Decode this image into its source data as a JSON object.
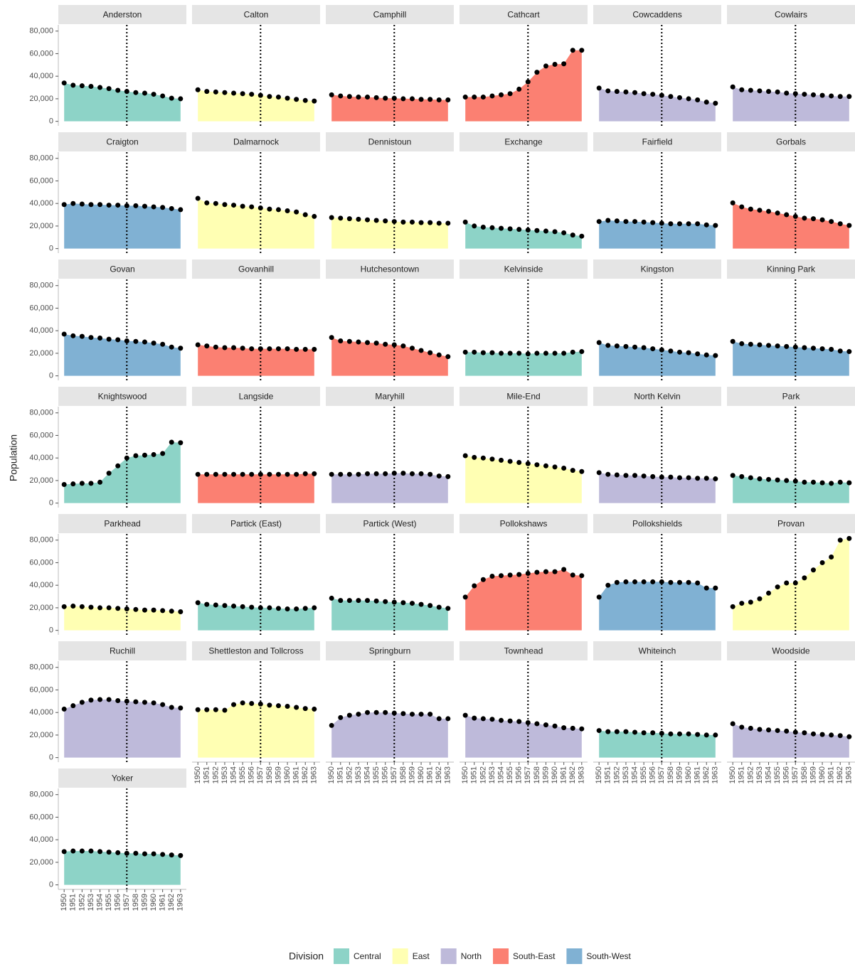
{
  "chart_data": {
    "type": "area",
    "y_label": "Population",
    "legend_title": "Division",
    "legend_position": "bottom",
    "divisions": [
      {
        "name": "Central",
        "color": "#8dd3c7"
      },
      {
        "name": "East",
        "color": "#ffffb3"
      },
      {
        "name": "North",
        "color": "#bebada"
      },
      {
        "name": "South-East",
        "color": "#fb8072"
      },
      {
        "name": "South-West",
        "color": "#80b1d3"
      }
    ],
    "x": [
      1950,
      1951,
      1952,
      1953,
      1954,
      1955,
      1956,
      1957,
      1958,
      1959,
      1960,
      1961,
      1962,
      1963
    ],
    "xlim": [
      1949.35,
      1963.65
    ],
    "xticks": [
      1950,
      1951,
      1952,
      1953,
      1954,
      1955,
      1956,
      1957,
      1958,
      1959,
      1960,
      1961,
      1962,
      1963
    ],
    "ylim": [
      -4000,
      85500
    ],
    "yticks": [
      0,
      {
        "value": 20000,
        "label": "20,000"
      },
      {
        "value": 40000,
        "label": "40,000"
      },
      {
        "value": 60000,
        "label": "60,000"
      },
      {
        "value": 80000,
        "label": "80,000"
      }
    ],
    "vline": 1957,
    "columns": 6,
    "panels": [
      {
        "title": "Anderston",
        "division": "Central",
        "values": [
          34000,
          32000,
          31500,
          31000,
          30000,
          29000,
          27500,
          26500,
          25500,
          25000,
          24000,
          22500,
          20500,
          20000
        ]
      },
      {
        "title": "Calton",
        "division": "East",
        "values": [
          28000,
          26500,
          26000,
          25500,
          25000,
          24500,
          24000,
          23000,
          22000,
          21500,
          20500,
          19500,
          18500,
          18000
        ]
      },
      {
        "title": "Camphill",
        "division": "South-East",
        "values": [
          23500,
          22500,
          22000,
          21500,
          21500,
          21000,
          20500,
          20500,
          20000,
          20000,
          19500,
          19500,
          19000,
          19000
        ]
      },
      {
        "title": "Cathcart",
        "division": "South-East",
        "values": [
          21500,
          21500,
          21500,
          22500,
          23500,
          24500,
          28500,
          35000,
          43500,
          49000,
          50500,
          51000,
          63000,
          63000
        ]
      },
      {
        "title": "Cowcaddens",
        "division": "North",
        "values": [
          29500,
          27000,
          26500,
          26000,
          25500,
          24500,
          24000,
          23000,
          22000,
          21000,
          20000,
          19000,
          17000,
          16000
        ]
      },
      {
        "title": "Cowlairs",
        "division": "North",
        "values": [
          30500,
          28000,
          27500,
          27000,
          26500,
          26000,
          25000,
          24500,
          24000,
          23500,
          23000,
          22500,
          22000,
          22000
        ]
      },
      {
        "title": "Craigton",
        "division": "South-West",
        "values": [
          39000,
          40000,
          39500,
          39000,
          39000,
          38500,
          38500,
          38000,
          38000,
          37500,
          37000,
          36500,
          35500,
          34500
        ]
      },
      {
        "title": "Dalmarnock",
        "division": "East",
        "values": [
          44500,
          40500,
          40000,
          39000,
          38500,
          37500,
          37000,
          36000,
          35000,
          34500,
          33500,
          32500,
          30000,
          28500
        ]
      },
      {
        "title": "Dennistoun",
        "division": "East",
        "values": [
          27500,
          27000,
          26500,
          26000,
          25500,
          25000,
          24500,
          24000,
          23500,
          23500,
          23000,
          23000,
          22500,
          22500
        ]
      },
      {
        "title": "Exchange",
        "division": "Central",
        "values": [
          23500,
          20000,
          19000,
          18500,
          18000,
          17500,
          17000,
          16500,
          16000,
          15500,
          15000,
          14000,
          12000,
          11000
        ]
      },
      {
        "title": "Fairfield",
        "division": "South-West",
        "values": [
          24000,
          25000,
          24500,
          24000,
          24000,
          23500,
          23000,
          22500,
          22000,
          22000,
          22000,
          22000,
          21000,
          20500
        ]
      },
      {
        "title": "Gorbals",
        "division": "South-East",
        "values": [
          40500,
          37000,
          35000,
          34000,
          33000,
          31500,
          30000,
          28500,
          27000,
          26500,
          25500,
          24000,
          22000,
          20500
        ]
      },
      {
        "title": "Govan",
        "division": "South-West",
        "values": [
          37000,
          35500,
          35000,
          34000,
          33500,
          32500,
          32000,
          31000,
          30500,
          30000,
          29000,
          28000,
          25500,
          24500
        ]
      },
      {
        "title": "Govanhill",
        "division": "South-East",
        "values": [
          27500,
          26500,
          25500,
          25000,
          25000,
          24500,
          24000,
          24000,
          24000,
          24000,
          24000,
          23500,
          23500,
          23500
        ]
      },
      {
        "title": "Hutchesontown",
        "division": "South-East",
        "values": [
          34000,
          31000,
          30500,
          30000,
          29500,
          29000,
          28000,
          27500,
          26500,
          24500,
          22500,
          20500,
          18500,
          17000
        ]
      },
      {
        "title": "Kelvinside",
        "division": "Central",
        "values": [
          21000,
          21000,
          20500,
          20500,
          20000,
          20000,
          20000,
          19500,
          20000,
          20000,
          20000,
          20000,
          21000,
          21500
        ]
      },
      {
        "title": "Kingston",
        "division": "South-West",
        "values": [
          29500,
          27000,
          26500,
          26000,
          25500,
          25000,
          24000,
          23000,
          22000,
          21000,
          20500,
          19500,
          18500,
          18000
        ]
      },
      {
        "title": "Kinning Park",
        "division": "South-West",
        "values": [
          30500,
          28500,
          28000,
          27500,
          27000,
          26500,
          26000,
          25500,
          25000,
          24500,
          24000,
          23500,
          22000,
          21500
        ]
      },
      {
        "title": "Knightswood",
        "division": "Central",
        "values": [
          16500,
          17000,
          17500,
          17500,
          18500,
          26500,
          33000,
          40000,
          42000,
          42500,
          43000,
          44000,
          54000,
          53500
        ]
      },
      {
        "title": "Langside",
        "division": "South-East",
        "values": [
          25500,
          25500,
          25500,
          25500,
          25500,
          25500,
          25500,
          25500,
          25500,
          25500,
          25500,
          25500,
          26000,
          26000
        ]
      },
      {
        "title": "Maryhill",
        "division": "North",
        "values": [
          25500,
          25500,
          25500,
          25500,
          26000,
          26000,
          26000,
          26500,
          26500,
          26000,
          26000,
          25500,
          24000,
          23500
        ]
      },
      {
        "title": "Mile-End",
        "division": "East",
        "values": [
          42000,
          40500,
          40000,
          39000,
          38000,
          37000,
          36000,
          35000,
          34000,
          33000,
          32000,
          31000,
          29000,
          28000
        ]
      },
      {
        "title": "North Kelvin",
        "division": "North",
        "values": [
          27000,
          25500,
          25000,
          24500,
          24500,
          24000,
          23500,
          23000,
          23000,
          22500,
          22500,
          22000,
          22000,
          21500
        ]
      },
      {
        "title": "Park",
        "division": "Central",
        "values": [
          24500,
          23500,
          22500,
          21500,
          21000,
          20500,
          20000,
          19500,
          18500,
          18500,
          18000,
          17500,
          18500,
          18000
        ]
      },
      {
        "title": "Parkhead",
        "division": "East",
        "values": [
          21000,
          21500,
          21000,
          20500,
          20000,
          20000,
          19500,
          19000,
          18500,
          18000,
          18000,
          17500,
          17000,
          16500
        ]
      },
      {
        "title": "Partick (East)",
        "division": "Central",
        "values": [
          24500,
          23000,
          22500,
          22000,
          21500,
          21000,
          20500,
          20000,
          20000,
          19500,
          19000,
          19000,
          19500,
          20000
        ]
      },
      {
        "title": "Partick (West)",
        "division": "Central",
        "values": [
          28500,
          26500,
          26500,
          26500,
          26500,
          26000,
          25500,
          25000,
          24500,
          24000,
          23000,
          22000,
          20500,
          19500
        ]
      },
      {
        "title": "Pollokshaws",
        "division": "South-East",
        "values": [
          29500,
          39500,
          45000,
          48000,
          48500,
          49000,
          49500,
          50500,
          51500,
          52000,
          52000,
          54000,
          49000,
          48500
        ]
      },
      {
        "title": "Pollokshields",
        "division": "South-West",
        "values": [
          29500,
          40000,
          42500,
          43000,
          43000,
          43000,
          43000,
          43000,
          42500,
          42500,
          42500,
          42000,
          37500,
          37500
        ]
      },
      {
        "title": "Provan",
        "division": "East",
        "values": [
          21000,
          24000,
          25000,
          28000,
          33000,
          38500,
          42000,
          42000,
          46500,
          53500,
          60000,
          65000,
          80000,
          81500
        ]
      },
      {
        "title": "Ruchill",
        "division": "North",
        "values": [
          43000,
          46000,
          49000,
          51000,
          51500,
          51500,
          50500,
          50000,
          49500,
          49000,
          48500,
          47000,
          44500,
          44000
        ]
      },
      {
        "title": "Shettleston and Tollcross",
        "division": "East",
        "values": [
          42500,
          42500,
          42500,
          42000,
          47000,
          48500,
          48000,
          47500,
          46500,
          46000,
          45500,
          44500,
          43500,
          43000
        ]
      },
      {
        "title": "Springburn",
        "division": "North",
        "values": [
          28500,
          35500,
          37500,
          38500,
          40000,
          40000,
          40000,
          39500,
          39000,
          38500,
          38500,
          38500,
          34500,
          34500
        ]
      },
      {
        "title": "Townhead",
        "division": "North",
        "values": [
          37500,
          35000,
          34500,
          34000,
          33000,
          32500,
          32000,
          31000,
          30000,
          29000,
          28000,
          26500,
          26000,
          25500
        ]
      },
      {
        "title": "Whiteinch",
        "division": "Central",
        "values": [
          24000,
          23000,
          23000,
          23000,
          22500,
          22000,
          22000,
          21500,
          21000,
          21000,
          21000,
          20500,
          20000,
          20000
        ]
      },
      {
        "title": "Woodside",
        "division": "North",
        "values": [
          30000,
          27000,
          26000,
          25000,
          24500,
          24000,
          23500,
          22500,
          22000,
          21000,
          20500,
          20000,
          19500,
          18500
        ]
      },
      {
        "title": "Yoker",
        "division": "Central",
        "values": [
          29500,
          30000,
          30000,
          30000,
          29500,
          29000,
          28500,
          28000,
          28000,
          27500,
          27500,
          27000,
          26500,
          26000
        ]
      }
    ]
  }
}
